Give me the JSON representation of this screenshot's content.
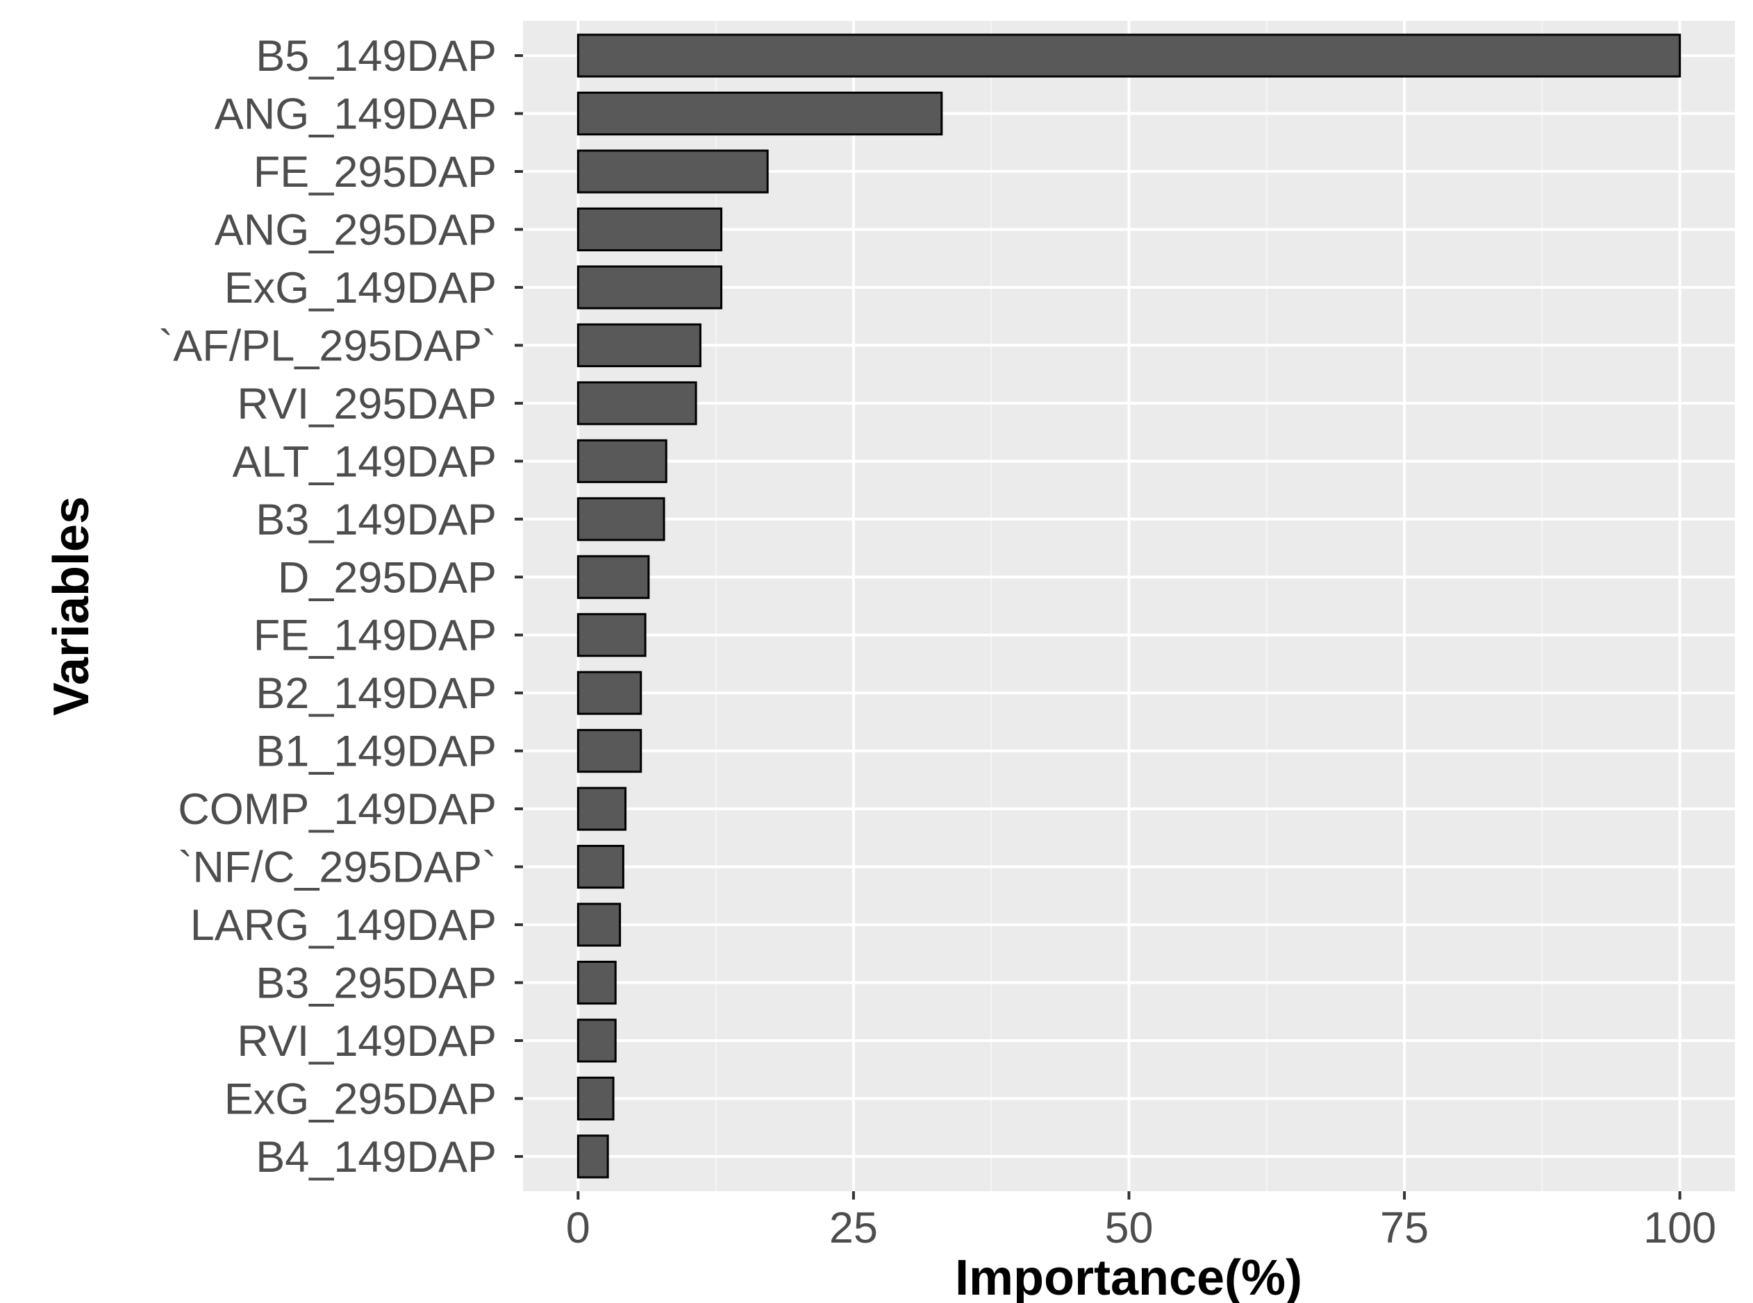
{
  "chart_data": {
    "type": "bar",
    "orientation": "horizontal",
    "title": "",
    "xlabel": "Importance(%)",
    "ylabel": "Variables",
    "xlim": [
      -5,
      105
    ],
    "x_ticks": [
      "0",
      "25",
      "50",
      "75",
      "100"
    ],
    "grid": true,
    "legend": "none",
    "colors": {
      "panel": "#ebebeb",
      "grid_major": "#ffffff",
      "grid_minor": "#f5f5f5",
      "bar_fill": "#595959",
      "bar_stroke": "#000000",
      "tick_text": "#4d4d4d"
    },
    "categories": [
      "B5_149DAP",
      "ANG_149DAP",
      "FE_295DAP",
      "ANG_295DAP",
      "ExG_149DAP",
      "`AF/PL_295DAP`",
      "RVI_295DAP",
      "ALT_149DAP",
      "B3_149DAP",
      "D_295DAP",
      "FE_149DAP",
      "B2_149DAP",
      "B1_149DAP",
      "COMP_149DAP",
      "`NF/C_295DAP`",
      "LARG_149DAP",
      "B3_295DAP",
      "RVI_149DAP",
      "ExG_295DAP",
      "B4_149DAP"
    ],
    "values": [
      100,
      33,
      17.2,
      13,
      13,
      11.1,
      10.7,
      8,
      7.8,
      6.4,
      6.1,
      5.7,
      5.7,
      4.3,
      4.1,
      3.8,
      3.4,
      3.4,
      3.2,
      2.7
    ]
  }
}
